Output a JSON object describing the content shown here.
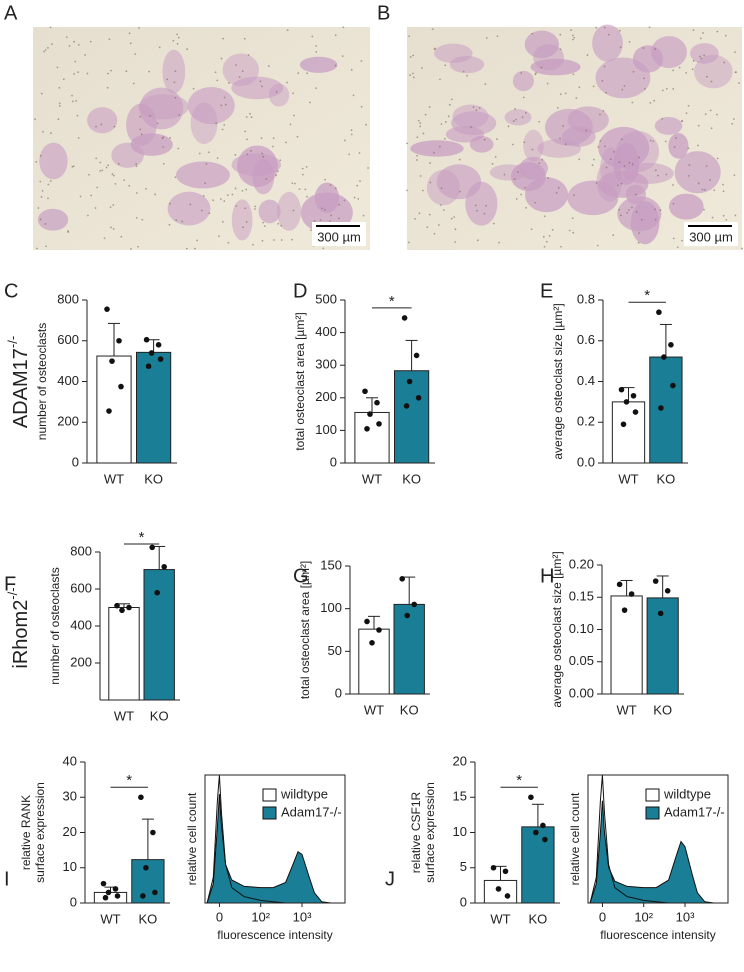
{
  "figure": {
    "micrographs": [
      {
        "letter": "A",
        "scale_bar": "300 µm"
      },
      {
        "letter": "B",
        "scale_bar": "300 µm"
      }
    ],
    "row_labels": [
      {
        "text": "ADAM17",
        "sup": "-/-"
      },
      {
        "text": "iRhom2",
        "sup": "-/-"
      }
    ]
  },
  "chart_data": [
    {
      "type": "bar",
      "panel": "C",
      "ylabel": [
        "number of osteoclasts"
      ],
      "categories": [
        "WT",
        "KO"
      ],
      "values": [
        525,
        543
      ],
      "errors": [
        160,
        62
      ],
      "points": [
        [
          755,
          600,
          500,
          375,
          255
        ],
        [
          605,
          580,
          540,
          510,
          475
        ]
      ],
      "colors": [
        "#ffffff",
        "#1a7f96"
      ],
      "ylim": [
        0,
        800
      ],
      "yticks": [
        0,
        200,
        400,
        600,
        800
      ]
    },
    {
      "type": "bar",
      "panel": "D",
      "ylabel": [
        "total osteoclast area [µm²]"
      ],
      "categories": [
        "WT",
        "KO"
      ],
      "values": [
        155,
        283
      ],
      "errors": [
        45,
        93
      ],
      "points": [
        [
          220,
          185,
          150,
          120,
          105
        ],
        [
          445,
          330,
          250,
          200,
          175
        ]
      ],
      "colors": [
        "#ffffff",
        "#1a7f96"
      ],
      "ylim": [
        0,
        500
      ],
      "yticks": [
        0,
        100,
        200,
        300,
        400,
        500
      ],
      "significance": "*"
    },
    {
      "type": "bar",
      "panel": "E",
      "ylabel": [
        "average osteoclast size [µm²]"
      ],
      "categories": [
        "WT",
        "KO"
      ],
      "values": [
        0.3,
        0.52
      ],
      "errors": [
        0.07,
        0.16
      ],
      "points": [
        [
          0.36,
          0.33,
          0.3,
          0.25,
          0.19
        ],
        [
          0.74,
          0.58,
          0.52,
          0.38,
          0.27
        ]
      ],
      "colors": [
        "#ffffff",
        "#1a7f96"
      ],
      "ylim": [
        0,
        0.8
      ],
      "yticks": [
        {
          "value": 0,
          "label": "0.0"
        },
        0.2,
        0.4,
        0.6,
        0.8
      ],
      "significance": "*"
    },
    {
      "type": "bar",
      "panel": "F",
      "ylabel": [
        "number of osteoclasts"
      ],
      "categories": [
        "WT",
        "KO"
      ],
      "values": [
        500,
        705
      ],
      "errors": [
        20,
        125
      ],
      "points": [
        [
          510,
          500,
          485
        ],
        [
          825,
          720,
          580
        ]
      ],
      "colors": [
        "#ffffff",
        "#1a7f96"
      ],
      "ylim": [
        0,
        800
      ],
      "yticks": [
        200,
        400,
        600,
        800
      ],
      "significance": "*"
    },
    {
      "type": "bar",
      "panel": "G",
      "ylabel": [
        "total osteoclast area [µm²]"
      ],
      "categories": [
        "WT",
        "KO"
      ],
      "values": [
        76,
        105
      ],
      "errors": [
        15,
        32
      ],
      "points": [
        [
          85,
          75,
          60
        ],
        [
          135,
          105,
          92
        ]
      ],
      "colors": [
        "#ffffff",
        "#1a7f96"
      ],
      "ylim": [
        0,
        150
      ],
      "yticks": [
        0,
        50,
        100,
        150
      ]
    },
    {
      "type": "bar",
      "panel": "H",
      "ylabel": [
        "average osteoclast size [µm²]"
      ],
      "categories": [
        "WT",
        "KO"
      ],
      "values": [
        0.152,
        0.149
      ],
      "errors": [
        0.024,
        0.034
      ],
      "points": [
        [
          0.17,
          0.155,
          0.13
        ],
        [
          0.175,
          0.16,
          0.125
        ]
      ],
      "colors": [
        "#ffffff",
        "#1a7f96"
      ],
      "ylim": [
        0,
        0.2
      ],
      "yticks": [
        {
          "value": 0,
          "label": "0.00"
        },
        0.05,
        {
          "value": 0.1,
          "label": "0.10"
        },
        0.15,
        {
          "value": 0.2,
          "label": "0.20"
        }
      ]
    },
    {
      "type": "bar",
      "panel": "I",
      "ylabel": [
        "relative RANK",
        "surface expression"
      ],
      "categories": [
        "WT",
        "KO"
      ],
      "values": [
        3,
        12.3
      ],
      "errors": [
        1.5,
        11.5
      ],
      "points": [
        [
          5.5,
          4,
          3,
          2,
          1.5
        ],
        [
          30,
          20,
          10,
          3,
          2
        ]
      ],
      "colors": [
        "#ffffff",
        "#1a7f96"
      ],
      "ylim": [
        0,
        40
      ],
      "yticks": [
        0,
        10,
        20,
        30,
        40
      ],
      "significance": "*"
    },
    {
      "type": "area",
      "ylabel": [
        "relative cell count"
      ],
      "xlabel": "fluorescence intensity",
      "xscale": "symlog",
      "linthresh": 100,
      "xlim": [
        -35,
        11000
      ],
      "xticks": [
        0,
        {
          "value": 100,
          "label": "10²"
        },
        {
          "value": 1000,
          "label": "10³"
        }
      ],
      "ylim": [
        0,
        100
      ],
      "x": [
        -30,
        -15,
        -5,
        0,
        5,
        15,
        30,
        60,
        100,
        200,
        400,
        600,
        800,
        1000,
        1500,
        2000,
        3000,
        5000
      ],
      "series": [
        {
          "name": "wildtype",
          "color": "#ffffff",
          "values": [
            0,
            20,
            80,
            100,
            70,
            30,
            12,
            5,
            2,
            1,
            0,
            0,
            0,
            0,
            0,
            0,
            0,
            0
          ]
        },
        {
          "name": "Adam17-/-",
          "color": "#1a7f96",
          "values": [
            0,
            15,
            60,
            85,
            60,
            30,
            18,
            13,
            12,
            12,
            16,
            30,
            40,
            38,
            20,
            8,
            1,
            0
          ]
        }
      ]
    },
    {
      "type": "bar",
      "panel": "J",
      "ylabel": [
        "relative CSF1R",
        "surface expression"
      ],
      "categories": [
        "WT",
        "KO"
      ],
      "values": [
        3.2,
        10.8
      ],
      "errors": [
        2,
        3.2
      ],
      "points": [
        [
          5,
          4.5,
          2,
          1
        ],
        [
          15,
          11,
          10,
          9
        ]
      ],
      "colors": [
        "#ffffff",
        "#1a7f96"
      ],
      "ylim": [
        0,
        20
      ],
      "yticks": [
        0,
        5,
        10,
        15,
        20
      ],
      "significance": "*"
    },
    {
      "type": "area",
      "ylabel": [
        "relative cell count"
      ],
      "xlabel": "fluorescence intensity",
      "xscale": "symlog",
      "linthresh": 100,
      "xlim": [
        -35,
        11000
      ],
      "xticks": [
        0,
        {
          "value": 100,
          "label": "10²"
        },
        {
          "value": 1000,
          "label": "10³"
        }
      ],
      "ylim": [
        0,
        100
      ],
      "x": [
        -30,
        -15,
        -5,
        0,
        5,
        15,
        30,
        60,
        100,
        200,
        400,
        600,
        800,
        1000,
        1500,
        2000,
        3000,
        5000
      ],
      "series": [
        {
          "name": "wildtype",
          "color": "#ffffff",
          "values": [
            0,
            20,
            80,
            100,
            70,
            30,
            12,
            5,
            2,
            1,
            0,
            0,
            0,
            0,
            0,
            0,
            0,
            0
          ]
        },
        {
          "name": "Adam17-/-",
          "color": "#1a7f96",
          "values": [
            0,
            15,
            55,
            80,
            55,
            28,
            17,
            13,
            12,
            12,
            18,
            36,
            48,
            44,
            22,
            8,
            1,
            0
          ]
        }
      ]
    }
  ]
}
